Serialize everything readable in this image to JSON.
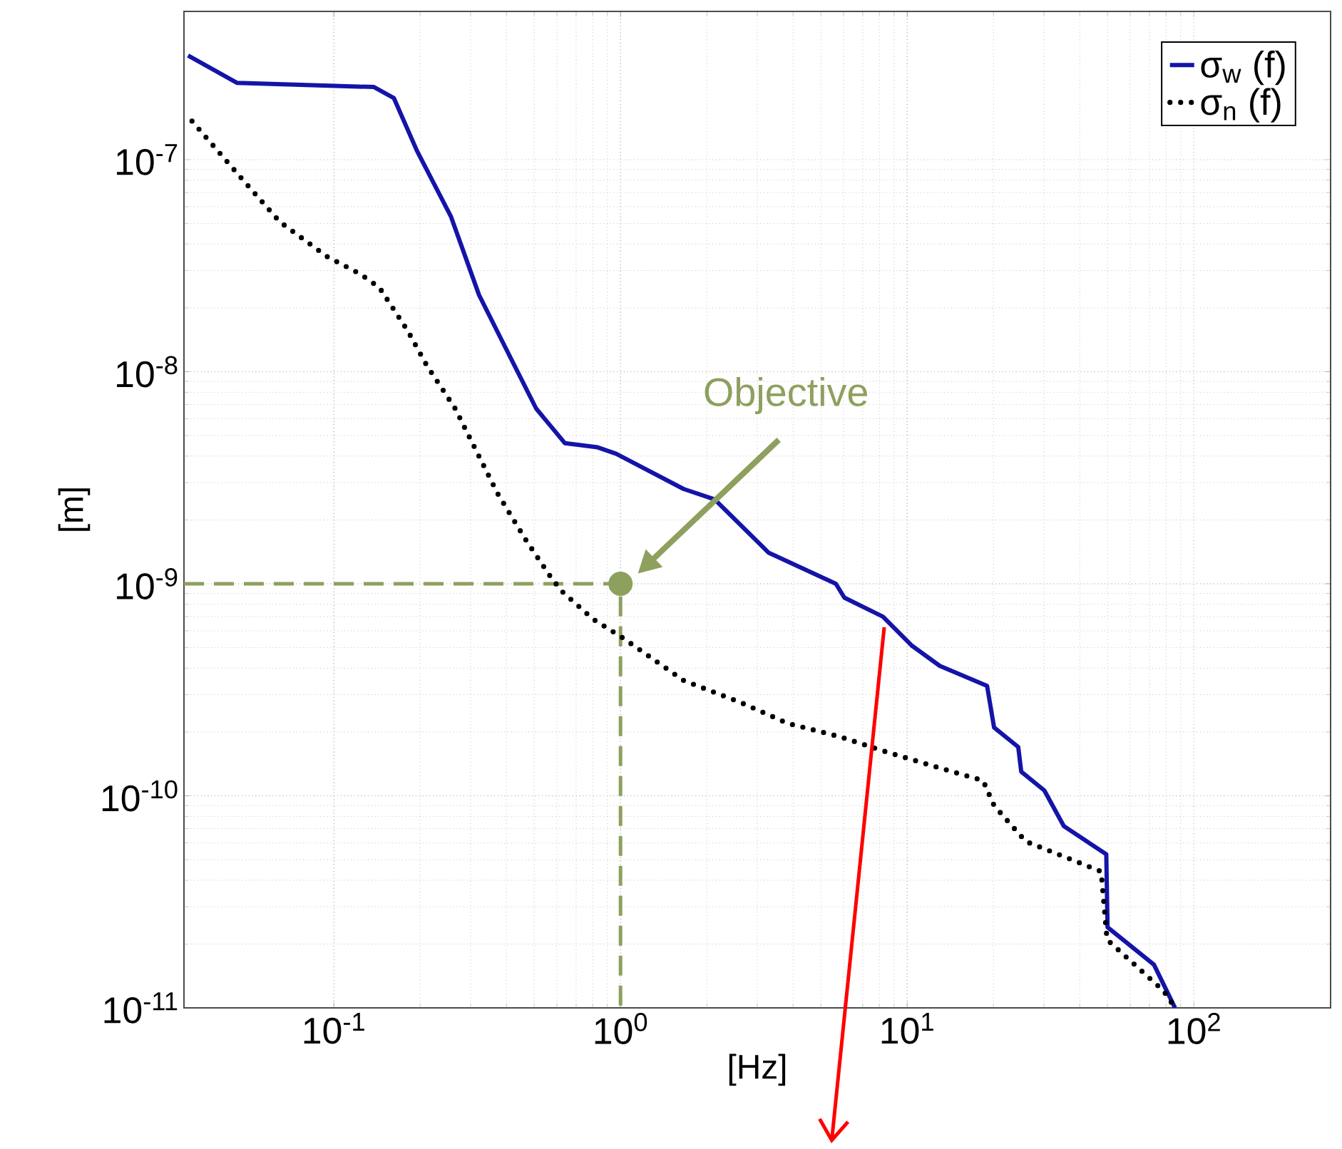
{
  "chart_data": {
    "type": "line",
    "xlabel": "[Hz]",
    "ylabel": "[m]",
    "log": "xy",
    "grid": true,
    "legend": "top right",
    "xlim": [
      0.03,
      300
    ],
    "ylim": [
      1e-11,
      5e-07
    ],
    "xticks": [
      {
        "value": 0.1,
        "label": "10$^{-1}$"
      },
      {
        "value": 1,
        "label": "10$^{0}$"
      },
      {
        "value": 10,
        "label": "10$^{1}$"
      },
      {
        "value": 100,
        "label": "10$^{2}$"
      }
    ],
    "yticks": [
      {
        "value": 1e-11,
        "label": "10$^{-11}$"
      },
      {
        "value": 1e-10,
        "label": "10$^{-10}$"
      },
      {
        "value": 1e-09,
        "label": "10$^{-9}$"
      },
      {
        "value": 1e-08,
        "label": "10$^{-8}$"
      },
      {
        "value": 1e-07,
        "label": "10$^{-7}$"
      }
    ],
    "annotations": [
      "Objective"
    ],
    "series": [
      {
        "name": "σ$_{w}$ (f)",
        "color": "#1414a8",
        "line_style": "solid",
        "x": [
          0.031,
          0.046,
          0.138,
          0.162,
          0.195,
          0.256,
          0.321,
          0.386,
          0.508,
          0.64,
          0.832,
          0.966,
          1.66,
          2.13,
          3.29,
          5.64,
          6.04,
          8.23,
          10.4,
          13.0,
          19.0,
          20.1,
          24.4,
          25.0,
          30.1,
          35.2,
          49.5,
          50,
          72.6,
          86
        ],
        "values": [
          3.1e-07,
          2.3e-07,
          2.2e-07,
          1.95e-07,
          1.1e-07,
          5.4e-08,
          2.3e-08,
          1.4e-08,
          6.7e-09,
          4.6e-09,
          4.4e-09,
          4.1e-09,
          2.8e-09,
          2.5e-09,
          1.4e-09,
          1e-09,
          8.6e-10,
          7e-10,
          5.1e-10,
          4.1e-10,
          3.3e-10,
          2.1e-10,
          1.7e-10,
          1.3e-10,
          1.06e-10,
          7.2e-11,
          5.3e-11,
          2.4e-11,
          1.6e-11,
          1e-11
        ]
      },
      {
        "type": "line",
        "color": "#8da05e",
        "line_style": "dashed",
        "x": [
          0.03,
          1,
          1
        ],
        "values": [
          1e-09,
          1e-09,
          1e-11
        ]
      },
      {
        "type": "scatter",
        "color": "#8da05e",
        "marker": "circle",
        "x": [
          1
        ],
        "values": [
          1e-09
        ]
      },
      {
        "name": "σ$_{n}$ (f)",
        "color": "#000000",
        "line_style": "dotted",
        "x": [
          0.032,
          0.0475,
          0.0647,
          0.0944,
          0.123,
          0.144,
          0.181,
          0.211,
          0.265,
          0.307,
          0.373,
          0.47,
          0.57,
          0.625,
          0.804,
          1.01,
          1.66,
          2.62,
          3.82,
          5.83,
          8.23,
          12.6,
          18.4,
          20.1,
          25.9,
          47.5,
          49.8,
          78.6,
          86
        ],
        "values": [
          1.52e-07,
          8.2e-08,
          5.1e-08,
          3.5e-08,
          2.9e-08,
          2.5e-08,
          1.56e-08,
          1.07e-08,
          6.7e-09,
          4.5e-09,
          2.66e-09,
          1.59e-09,
          1.08e-09,
          9.2e-10,
          6.8e-10,
          5.6e-10,
          3.5e-10,
          2.76e-10,
          2.2e-10,
          1.9e-10,
          1.63e-10,
          1.37e-10,
          1.18e-10,
          9e-11,
          6.1e-11,
          4.4e-11,
          2.1e-11,
          1.2e-11,
          1e-11
        ]
      }
    ]
  }
}
